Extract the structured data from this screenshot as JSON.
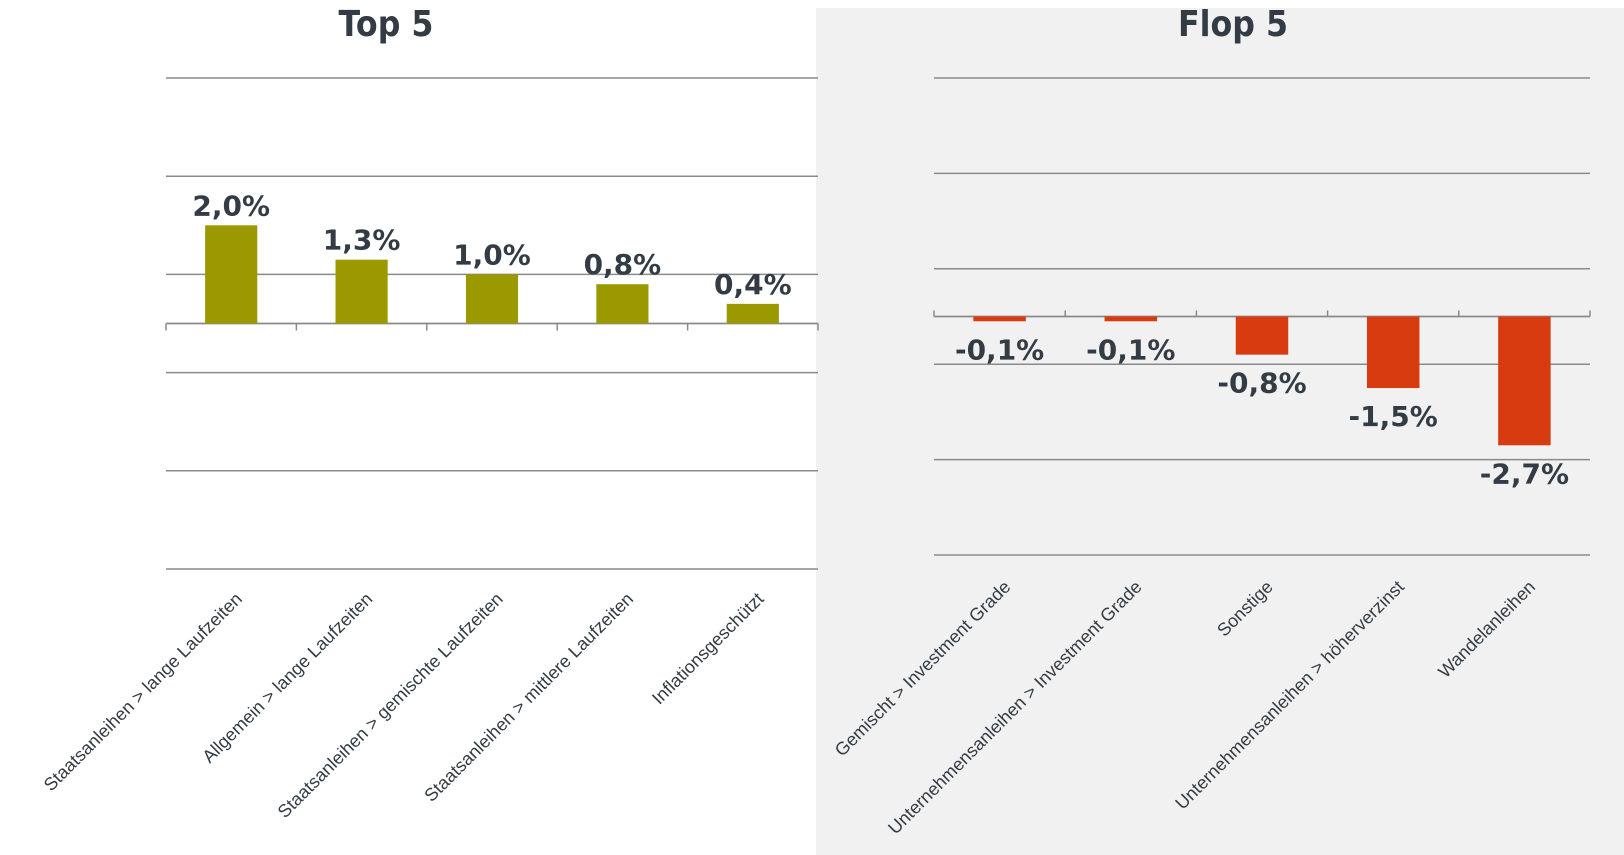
{
  "chart_data": [
    {
      "type": "bar",
      "title": "Top 5",
      "categories": [
        "Staatsanleihen > lange Laufzeiten",
        "Allgemein > lange Laufzeiten",
        "Staatsanleihen > gemischte Laufzeiten",
        "Staatsanleihen > mittlere Laufzeiten",
        "Inflationsgeschützt"
      ],
      "values": [
        2.0,
        1.3,
        1.0,
        0.8,
        0.4
      ],
      "data_labels": [
        "2,0%",
        "1,3%",
        "1,0%",
        "0,8%",
        "0,4%"
      ],
      "ylim": [
        -5,
        5
      ],
      "grid": true,
      "legend": "none",
      "bar_color": "#9a9a00"
    },
    {
      "type": "bar",
      "title": "Flop 5",
      "categories": [
        "Gemischt > Investment Grade",
        "Unternehmensanleihen > Investment Grade",
        "Sonstige",
        "Unternehmensanleihen > höherverzinst",
        "Wandelanleihen"
      ],
      "values": [
        -0.1,
        -0.1,
        -0.8,
        -1.5,
        -2.7
      ],
      "data_labels": [
        "-0,1%",
        "-0,1%",
        "-0,8%",
        "-1,5%",
        "-2,7%"
      ],
      "ylim": [
        -5,
        5
      ],
      "grid": true,
      "legend": "none",
      "bar_color": "#d83b10",
      "panel_background": "#f1f1f1"
    }
  ]
}
